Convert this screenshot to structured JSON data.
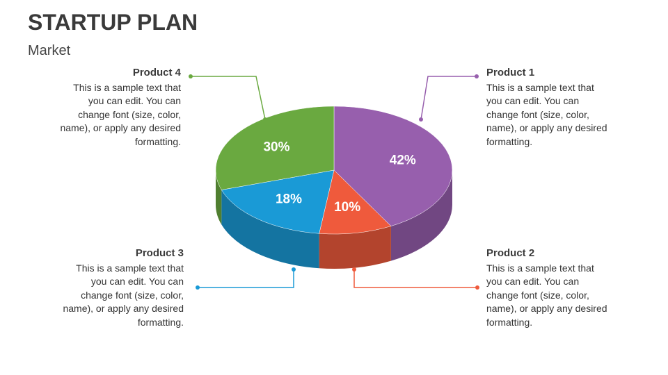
{
  "title": "STARTUP PLAN",
  "subtitle": "Market",
  "chart_data": {
    "type": "pie",
    "categories": [
      "Product 1",
      "Product 2",
      "Product 3",
      "Product 4"
    ],
    "values": [
      42,
      10,
      18,
      30
    ],
    "value_labels": [
      "42%",
      "10%",
      "18%",
      "30%"
    ],
    "colors": [
      "#975fad",
      "#ef5a3c",
      "#1a9ad6",
      "#6aa940"
    ],
    "descriptions": [
      "This is a sample text that you can edit. You can change font (size, color, name), or apply any desired formatting.",
      "This is a sample text that you can edit. You can change font (size, color, name), or apply any desired formatting.",
      "This is a sample text that you can edit. You can change font (size, color, name), or apply any desired formatting.",
      "This is a sample text that you can edit. You can change font (size, color, name), or apply any desired formatting."
    ]
  }
}
